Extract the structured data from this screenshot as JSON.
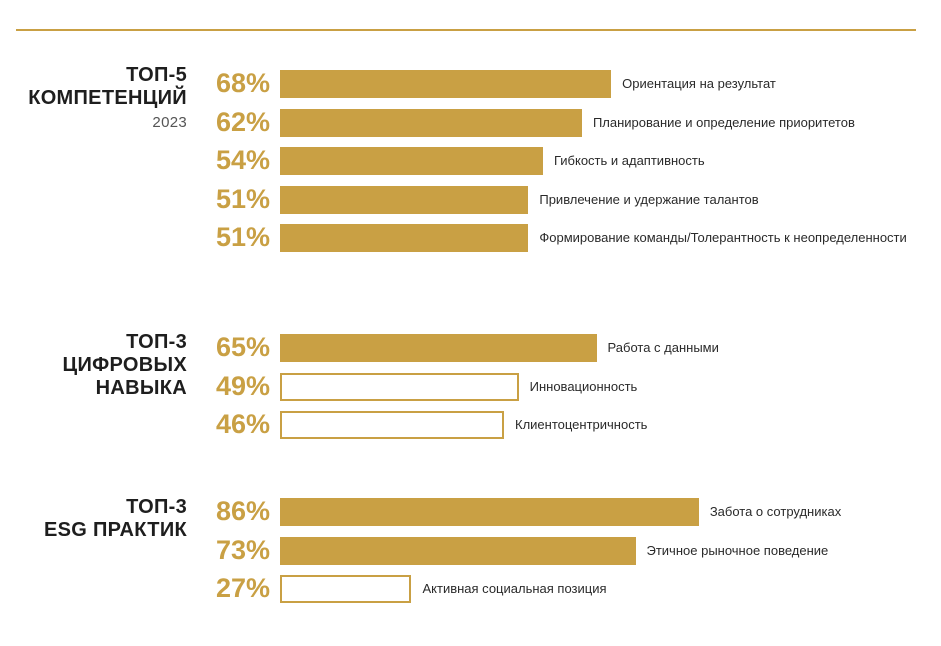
{
  "colors": {
    "accent": "#c9a044",
    "text": "#1e1e1e"
  },
  "chart_data": [
    {
      "type": "bar",
      "orientation": "horizontal",
      "title": [
        "ТОП-5",
        "КОМПЕТЕНЦИЙ"
      ],
      "subtitle": "2023",
      "categories": [
        "Ориентация на результат",
        "Планирование и определение приоритетов",
        "Гибкость и адаптивность",
        "Привлечение и удержание талантов",
        "Формирование команды/Толерантность к неопределенности"
      ],
      "values": [
        68,
        62,
        54,
        51,
        51
      ],
      "value_labels": [
        "68%",
        "62%",
        "54%",
        "51%",
        "51%"
      ],
      "filled": [
        true,
        true,
        true,
        true,
        true
      ],
      "unit": "%"
    },
    {
      "type": "bar",
      "orientation": "horizontal",
      "title": [
        "ТОП-3",
        "ЦИФРОВЫХ",
        "НАВЫКА"
      ],
      "categories": [
        "Работа с данными",
        "Инновационность",
        "Клиентоцентричность"
      ],
      "values": [
        65,
        49,
        46
      ],
      "value_labels": [
        "65%",
        "49%",
        "46%"
      ],
      "filled": [
        true,
        false,
        false
      ],
      "unit": "%"
    },
    {
      "type": "bar",
      "orientation": "horizontal",
      "title": [
        "ТОП-3",
        "ESG ПРАКТИК"
      ],
      "categories": [
        "Забота о сотрудниках",
        "Этичное рыночное поведение",
        "Активная социальная позиция"
      ],
      "values": [
        86,
        73,
        27
      ],
      "value_labels": [
        "86%",
        "73%",
        "27%"
      ],
      "filled": [
        true,
        true,
        false
      ],
      "unit": "%"
    }
  ]
}
